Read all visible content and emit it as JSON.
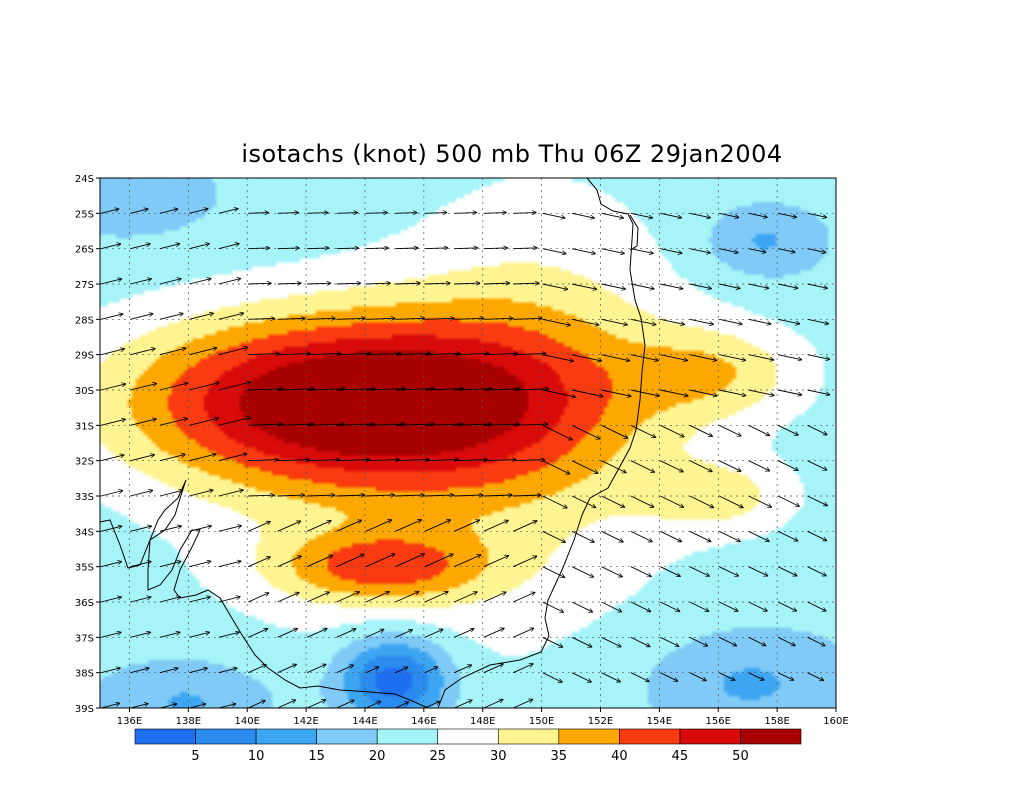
{
  "chart_data": {
    "type": "heatmap",
    "title": "isotachs (knot) 500 mb Thu 06Z 29jan2004",
    "x_range": [
      135,
      160
    ],
    "y_range": [
      -39,
      -24
    ],
    "x_ticks": [
      "136E",
      "138E",
      "140E",
      "142E",
      "144E",
      "146E",
      "148E",
      "150E",
      "152E",
      "154E",
      "156E",
      "158E",
      "160E"
    ],
    "y_ticks": [
      "24S",
      "25S",
      "26S",
      "27S",
      "28S",
      "29S",
      "30S",
      "31S",
      "32S",
      "33S",
      "34S",
      "35S",
      "36S",
      "37S",
      "38S",
      "39S"
    ],
    "grid": true,
    "grid_style": "dotted",
    "levels": [
      5,
      10,
      15,
      20,
      25,
      30,
      35,
      40,
      45,
      50
    ],
    "colorbar_labels": [
      "5",
      "10",
      "15",
      "20",
      "25",
      "30",
      "35",
      "40",
      "45",
      "50"
    ],
    "colors": [
      "#1e6ef0",
      "#2b8cf0",
      "#3ca6f2",
      "#7fcaf6",
      "#a6f4f8",
      "#ffffff",
      "#fef492",
      "#fca800",
      "#fa3a10",
      "#d80a0a",
      "#a80000"
    ],
    "jet_core": {
      "lon": 144,
      "lat": -30.3,
      "max_knots": 55
    },
    "wind_vectors": "west-to-east flow, turning south-eastward east of 151E"
  }
}
